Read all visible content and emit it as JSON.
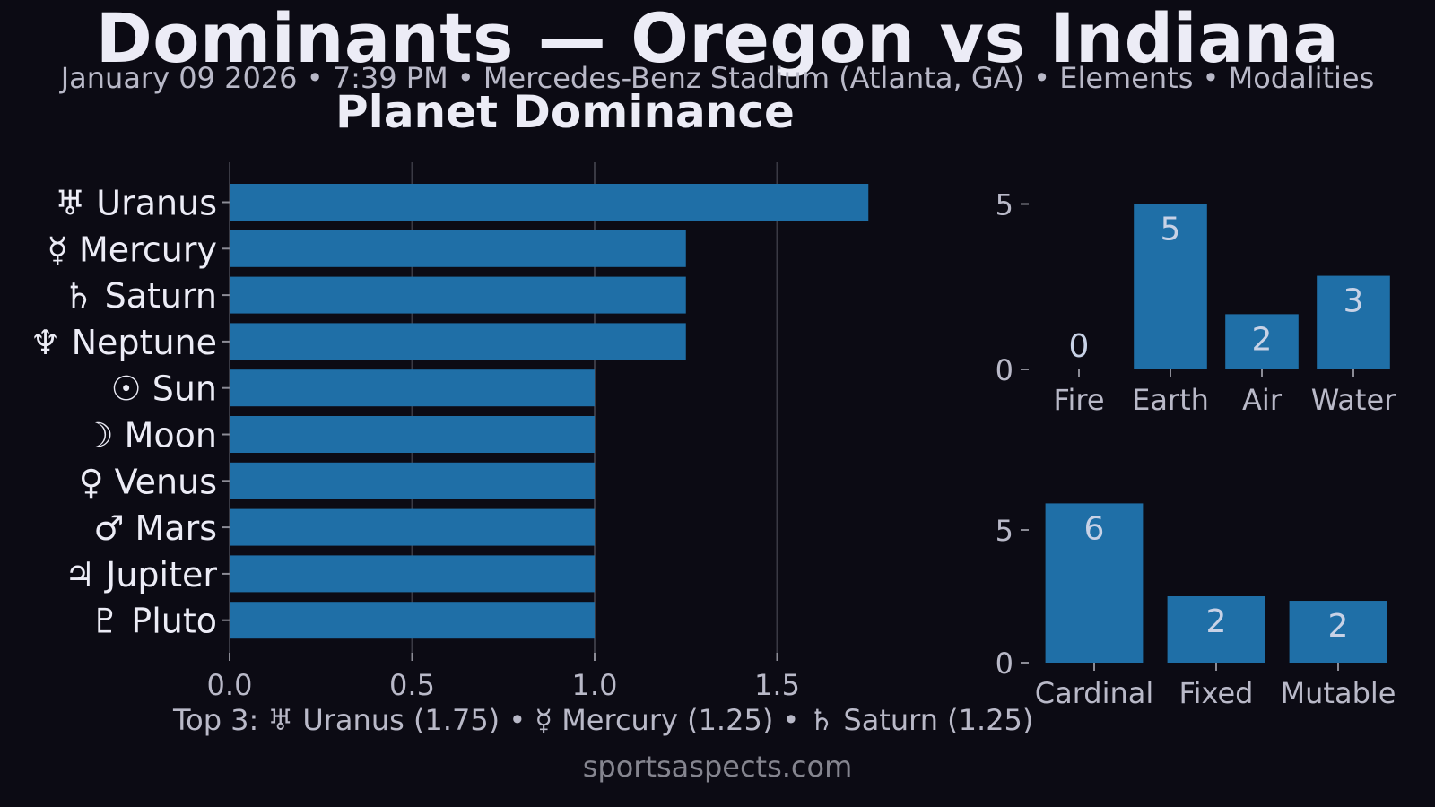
{
  "header": {
    "title": "Dominants — Oregon vs Indiana",
    "subtitle": "January 09 2026 • 7:39 PM • Mercedes-Benz Stadium (Atlanta, GA) • Elements • Modalities"
  },
  "top3_text": "Top 3: ♅ Uranus (1.75) • ☿ Mercury (1.25) • ♄ Saturn (1.25)",
  "footer": "sportsaspects.com",
  "colors": {
    "background": "#0c0b14",
    "bar": "#1f6fa7",
    "grid": "#3a3a44",
    "text": "#ececf6",
    "muted": "#b9b9c8"
  },
  "chart_data": [
    {
      "type": "bar",
      "orientation": "horizontal",
      "title": "Planet Dominance",
      "categories": [
        "♅ Uranus",
        "☿ Mercury",
        "♄ Saturn",
        "♆ Neptune",
        "☉ Sun",
        "☽ Moon",
        "♀ Venus",
        "♂ Mars",
        "♃ Jupiter",
        "♇ Pluto"
      ],
      "values": [
        1.75,
        1.25,
        1.25,
        1.25,
        1.0,
        1.0,
        1.0,
        1.0,
        1.0,
        1.0
      ],
      "xlim": [
        0,
        1.75
      ],
      "xticks": [
        0.0,
        0.5,
        1.0,
        1.5
      ],
      "xtick_labels": [
        "0.0",
        "0.5",
        "1.0",
        "1.5"
      ],
      "grid": "x"
    },
    {
      "type": "bar",
      "categories": [
        "Fire",
        "Earth",
        "Air",
        "Water"
      ],
      "values": [
        0,
        5,
        1.67,
        2.83
      ],
      "data_labels": [
        "0",
        "5",
        "2",
        "3"
      ],
      "ylim": [
        0,
        5
      ],
      "yticks": [
        0,
        5
      ],
      "ytick_labels": [
        "0",
        "5"
      ],
      "grid": false
    },
    {
      "type": "bar",
      "categories": [
        "Cardinal",
        "Fixed",
        "Mutable"
      ],
      "values": [
        6,
        2.5,
        2.33
      ],
      "data_labels": [
        "6",
        "2",
        "2"
      ],
      "ylim": [
        0,
        6
      ],
      "yticks": [
        0,
        5
      ],
      "ytick_labels": [
        "0",
        "5"
      ],
      "grid": false
    }
  ]
}
